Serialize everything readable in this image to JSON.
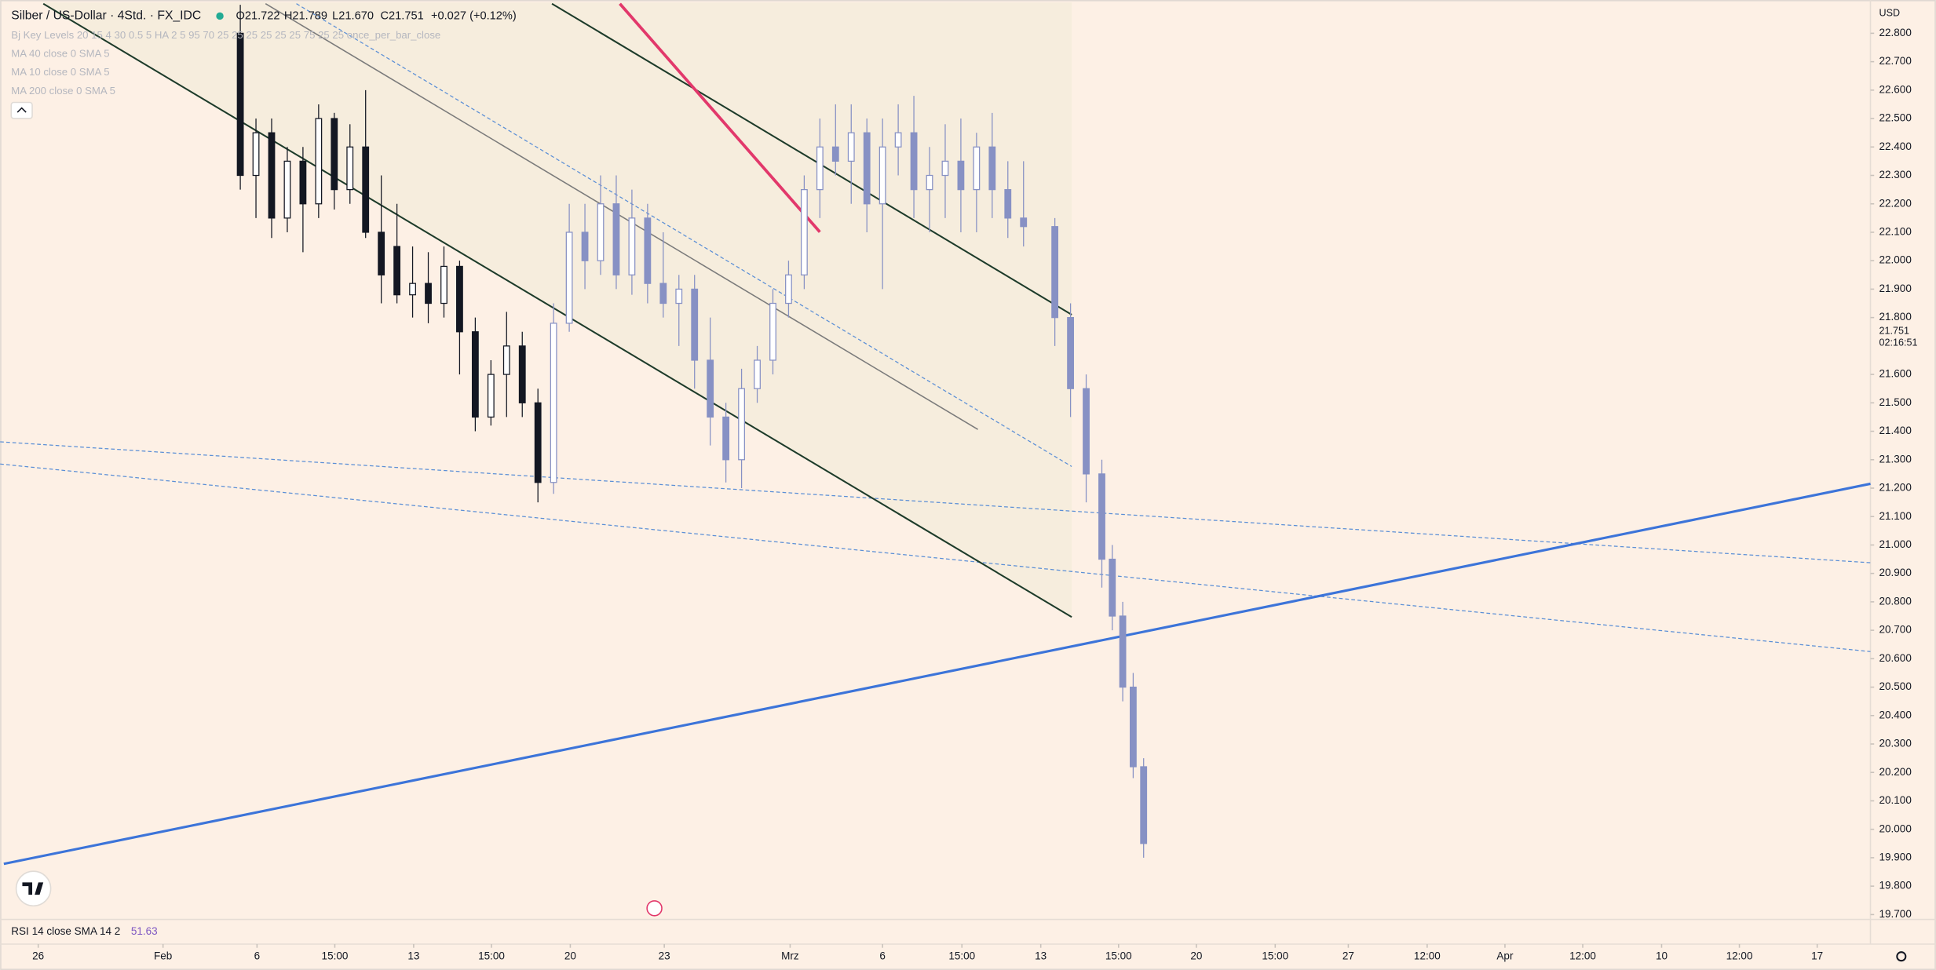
{
  "header": {
    "symbol": "Silber / US-Dollar · 4Std. · FX_IDC",
    "open": "O21.722",
    "high": "H21.789",
    "low": "L21.670",
    "close": "C21.751",
    "change": "+0.027 (+0.12%)"
  },
  "indicators": [
    "Bj Key Levels 20 15 4 30 0.5 5 HA 2 5 95 70 25 25 25 25 25 25 75 25 25 once_per_bar_close",
    "MA 40 close 0 SMA 5",
    "MA 10 close 0 SMA 5",
    "MA 200 close 0 SMA 5"
  ],
  "rsi": {
    "label": "RSI 14 close SMA 14 2",
    "value": 51.63
  },
  "currency": "USD",
  "countdown": "02:16:51",
  "chart_data": {
    "type": "candlestick",
    "last_price": 21.751,
    "ylim": [
      19.683,
      22.917
    ],
    "yticks": [
      {
        "value": 19.7,
        "label": "19.700"
      },
      {
        "value": 19.8,
        "label": "19.800"
      },
      {
        "value": 19.9,
        "label": "19.900"
      },
      {
        "value": 20.0,
        "label": "20.000"
      },
      {
        "value": 20.1,
        "label": "20.100"
      },
      {
        "value": 20.2,
        "label": "20.200"
      },
      {
        "value": 20.3,
        "label": "20.300"
      },
      {
        "value": 20.4,
        "label": "20.400"
      },
      {
        "value": 20.5,
        "label": "20.500"
      },
      {
        "value": 20.6,
        "label": "20.600"
      },
      {
        "value": 20.7,
        "label": "20.700"
      },
      {
        "value": 20.8,
        "label": "20.800"
      },
      {
        "value": 20.9,
        "label": "20.900"
      },
      {
        "value": 21.0,
        "label": "21.000"
      },
      {
        "value": 21.1,
        "label": "21.100"
      },
      {
        "value": 21.2,
        "label": "21.200"
      },
      {
        "value": 21.3,
        "label": "21.300"
      },
      {
        "value": 21.4,
        "label": "21.400"
      },
      {
        "value": 21.5,
        "label": "21.500"
      },
      {
        "value": 21.6,
        "label": "21.600"
      },
      {
        "value": 21.8,
        "label": "21.800"
      },
      {
        "value": 21.9,
        "label": "21.900"
      },
      {
        "value": 22.0,
        "label": "22.000"
      },
      {
        "value": 22.1,
        "label": "22.100"
      },
      {
        "value": 22.2,
        "label": "22.200"
      },
      {
        "value": 22.3,
        "label": "22.300"
      },
      {
        "value": 22.4,
        "label": "22.400"
      },
      {
        "value": 22.5,
        "label": "22.500"
      },
      {
        "value": 22.6,
        "label": "22.600"
      },
      {
        "value": 22.7,
        "label": "22.700"
      },
      {
        "value": 22.8,
        "label": "22.800"
      }
    ],
    "xlim": [
      0,
      358.2
    ],
    "xticks": [
      {
        "value": 7.3,
        "label": "26"
      },
      {
        "value": 31.2,
        "label": "Feb"
      },
      {
        "value": 49.2,
        "label": "6"
      },
      {
        "value": 64.1,
        "label": "15:00"
      },
      {
        "value": 79.2,
        "label": "13"
      },
      {
        "value": 94.1,
        "label": "15:00"
      },
      {
        "value": 109.2,
        "label": "20"
      },
      {
        "value": 127.2,
        "label": "23"
      },
      {
        "value": 151.3,
        "label": "Mrz"
      },
      {
        "value": 169,
        "label": "6"
      },
      {
        "value": 184.2,
        "label": "15:00"
      },
      {
        "value": 199.3,
        "label": "13"
      },
      {
        "value": 214.2,
        "label": "15:00"
      },
      {
        "value": 229.1,
        "label": "20"
      },
      {
        "value": 244.2,
        "label": "15:00"
      },
      {
        "value": 258.2,
        "label": "27"
      },
      {
        "value": 273.3,
        "label": "12:00"
      },
      {
        "value": 288.2,
        "label": "Apr"
      },
      {
        "value": 303.1,
        "label": "12:00"
      },
      {
        "value": 318.2,
        "label": "10"
      },
      {
        "value": 333.1,
        "label": "12:00"
      },
      {
        "value": 348,
        "label": "17"
      }
    ],
    "series": [
      {
        "color": "#131722",
        "x": [
          46,
          49,
          52,
          55,
          58,
          61,
          64,
          67,
          70,
          73,
          76,
          79,
          82,
          85,
          88,
          91,
          94,
          97,
          100,
          103
        ],
        "open": [
          22.8,
          22.3,
          22.45,
          22.15,
          22.35,
          22.2,
          22.5,
          22.25,
          22.4,
          22.1,
          22.05,
          21.88,
          21.92,
          21.85,
          21.98,
          21.75,
          21.45,
          21.6,
          21.7,
          21.5
        ],
        "high": [
          22.9,
          22.5,
          22.5,
          22.4,
          22.4,
          22.55,
          22.52,
          22.48,
          22.6,
          22.3,
          22.2,
          22.05,
          22.03,
          22.05,
          22.0,
          21.8,
          21.65,
          21.82,
          21.75,
          21.55
        ],
        "low": [
          22.25,
          22.15,
          22.08,
          22.1,
          22.03,
          22.15,
          22.18,
          22.2,
          22.08,
          21.85,
          21.85,
          21.8,
          21.78,
          21.8,
          21.6,
          21.4,
          21.42,
          21.45,
          21.45,
          21.15
        ],
        "close": [
          22.3,
          22.45,
          22.15,
          22.35,
          22.2,
          22.5,
          22.25,
          22.4,
          22.1,
          21.95,
          21.88,
          21.92,
          21.85,
          21.98,
          21.75,
          21.45,
          21.6,
          21.7,
          21.5,
          21.22
        ]
      },
      {
        "color": "#8791c4",
        "x": [
          106,
          109,
          112,
          115,
          118,
          121,
          124,
          127,
          130,
          133,
          136,
          139,
          142,
          145,
          148,
          151,
          154,
          157,
          160,
          163,
          166,
          169,
          172,
          175,
          178,
          181,
          184,
          187,
          190,
          193,
          196,
          202,
          205,
          208,
          211,
          213,
          215,
          217,
          219
        ],
        "open": [
          21.22,
          21.78,
          22.1,
          22.0,
          22.2,
          21.95,
          22.15,
          21.92,
          21.85,
          21.9,
          21.65,
          21.45,
          21.3,
          21.55,
          21.65,
          21.85,
          21.95,
          22.25,
          22.4,
          22.35,
          22.45,
          22.2,
          22.4,
          22.45,
          22.25,
          22.3,
          22.35,
          22.25,
          22.4,
          22.25,
          22.15,
          22.12,
          21.8,
          21.55,
          21.25,
          20.95,
          20.75,
          20.5,
          20.22
        ],
        "high": [
          21.85,
          22.2,
          22.2,
          22.3,
          22.3,
          22.25,
          22.2,
          22.1,
          21.95,
          21.95,
          21.8,
          21.5,
          21.62,
          21.7,
          21.9,
          22.0,
          22.3,
          22.5,
          22.55,
          22.55,
          22.5,
          22.5,
          22.55,
          22.58,
          22.4,
          22.48,
          22.5,
          22.45,
          22.52,
          22.35,
          22.35,
          22.15,
          21.85,
          21.6,
          21.3,
          21.0,
          20.8,
          20.55,
          20.25
        ],
        "low": [
          21.18,
          21.75,
          21.9,
          21.95,
          21.9,
          21.88,
          21.85,
          21.8,
          21.7,
          21.55,
          21.35,
          21.22,
          21.2,
          21.5,
          21.6,
          21.8,
          21.9,
          22.15,
          22.3,
          22.2,
          22.1,
          21.9,
          22.3,
          22.15,
          22.1,
          22.15,
          22.1,
          22.1,
          22.15,
          22.08,
          22.05,
          21.7,
          21.45,
          21.15,
          20.85,
          20.7,
          20.45,
          20.18,
          19.9
        ],
        "close": [
          21.78,
          22.1,
          22.0,
          22.2,
          21.95,
          22.15,
          21.92,
          21.85,
          21.9,
          21.65,
          21.45,
          21.3,
          21.55,
          21.65,
          21.85,
          21.95,
          22.25,
          22.4,
          22.35,
          22.45,
          22.2,
          22.4,
          22.45,
          22.25,
          22.3,
          22.35,
          22.25,
          22.4,
          22.25,
          22.15,
          22.12,
          21.8,
          21.55,
          21.25,
          20.95,
          20.75,
          20.5,
          20.22,
          19.95
        ]
      }
    ]
  }
}
